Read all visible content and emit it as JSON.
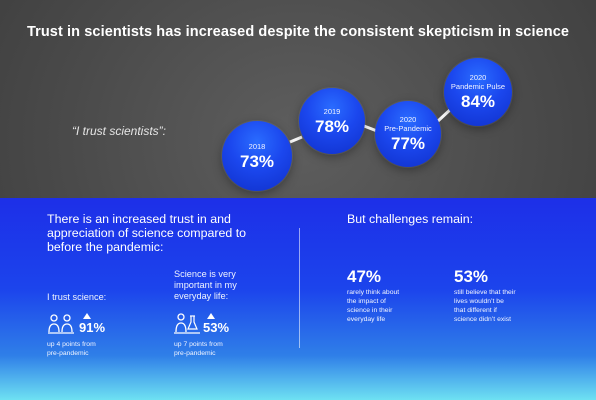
{
  "title": "Trust in scientists has increased despite the consistent skepticism in science",
  "quote": "“I trust scientists”:",
  "bubbles": [
    {
      "year": "2018",
      "sub": "",
      "value": "73%"
    },
    {
      "year": "2019",
      "sub": "",
      "value": "78%"
    },
    {
      "year": "2020",
      "sub": "Pre-Pandemic",
      "value": "77%"
    },
    {
      "year": "2020",
      "sub": "Pandemic Pulse",
      "value": "84%"
    }
  ],
  "left_panel": {
    "lead": "There is an increased trust in and appreciation of science compared to before the pandemic:",
    "item1": {
      "label": "I trust science:",
      "value": "91%",
      "note_line1": "up 4 points from",
      "note_line2": "pre-pandemic",
      "icon": "people-icon"
    },
    "item2": {
      "label_line1": "Science is very",
      "label_line2": "important in my",
      "label_line3": "everyday life:",
      "value": "53%",
      "note_line1": "up 7 points from",
      "note_line2": "pre-pandemic",
      "icon": "scientist-icon"
    }
  },
  "right_panel": {
    "lead": "But challenges remain:",
    "stat1": {
      "value": "47%",
      "lines": [
        "rarely think about",
        "the impact of",
        "science in their",
        "everyday life"
      ]
    },
    "stat2": {
      "value": "53%",
      "lines": [
        "still believe that their",
        "lives wouldn’t be",
        "that different if",
        "science didn’t exist"
      ]
    }
  },
  "colors": {
    "panel_top": "#1d2fe8",
    "panel_bottom": "#6ee1f2",
    "bubble": "#1b47ee"
  }
}
